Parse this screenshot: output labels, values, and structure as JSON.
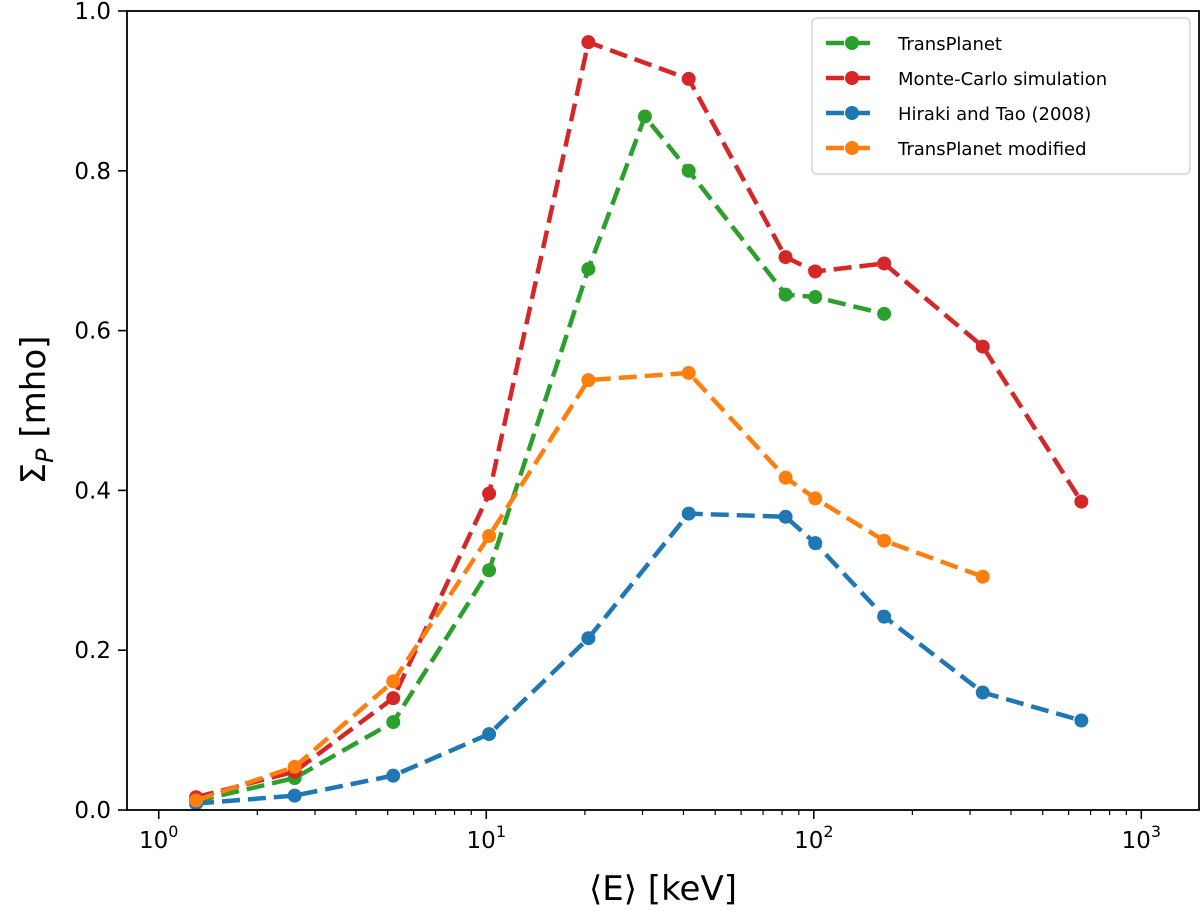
{
  "chart_data": {
    "type": "line",
    "title": "",
    "xlabel": "⟨E⟩ [keV]",
    "ylabel": "Σ_P [mho]",
    "xscale": "log",
    "xlim": [
      0.8,
      1500
    ],
    "ylim": [
      0,
      1.0
    ],
    "x_ticks": [
      {
        "value": 1,
        "base": "10",
        "exp": "0"
      },
      {
        "value": 10,
        "base": "10",
        "exp": "1"
      },
      {
        "value": 100,
        "base": "10",
        "exp": "2"
      },
      {
        "value": 1000,
        "base": "10",
        "exp": "3"
      }
    ],
    "y_ticks": [
      {
        "value": 0.0,
        "label": "0.0"
      },
      {
        "value": 0.2,
        "label": "0.2"
      },
      {
        "value": 0.4,
        "label": "0.4"
      },
      {
        "value": 0.6,
        "label": "0.6"
      },
      {
        "value": 0.8,
        "label": "0.8"
      },
      {
        "value": 1.0,
        "label": "1.0"
      }
    ],
    "legend_position": "top-right",
    "series": [
      {
        "name": "TransPlanet",
        "color": "#2ca02c",
        "x": [
          1.3,
          2.6,
          5.2,
          10.2,
          20.5,
          30.5,
          41.5,
          82,
          101,
          164
        ],
        "y": [
          0.011,
          0.04,
          0.11,
          0.3,
          0.677,
          0.868,
          0.8,
          0.645,
          0.642,
          0.621
        ]
      },
      {
        "name": "Monte-Carlo simulation",
        "color": "#d62728",
        "x": [
          1.3,
          2.6,
          5.2,
          10.2,
          20.5,
          41.5,
          82,
          101,
          164,
          328,
          656
        ],
        "y": [
          0.016,
          0.048,
          0.14,
          0.396,
          0.961,
          0.915,
          0.692,
          0.674,
          0.684,
          0.58,
          0.386
        ]
      },
      {
        "name": "Hiraki and Tao (2008)",
        "color": "#1f77b4",
        "x": [
          1.3,
          2.6,
          5.2,
          10.2,
          20.5,
          41.5,
          82,
          101,
          164,
          328,
          656
        ],
        "y": [
          0.008,
          0.018,
          0.043,
          0.095,
          0.215,
          0.371,
          0.367,
          0.334,
          0.242,
          0.147,
          0.112
        ]
      },
      {
        "name": "TransPlanet modified",
        "color": "#ff7f0e",
        "x": [
          1.3,
          2.6,
          5.2,
          10.2,
          20.5,
          41.5,
          82,
          101,
          164,
          328
        ],
        "y": [
          0.012,
          0.054,
          0.161,
          0.343,
          0.538,
          0.547,
          0.416,
          0.39,
          0.337,
          0.292
        ]
      }
    ]
  }
}
